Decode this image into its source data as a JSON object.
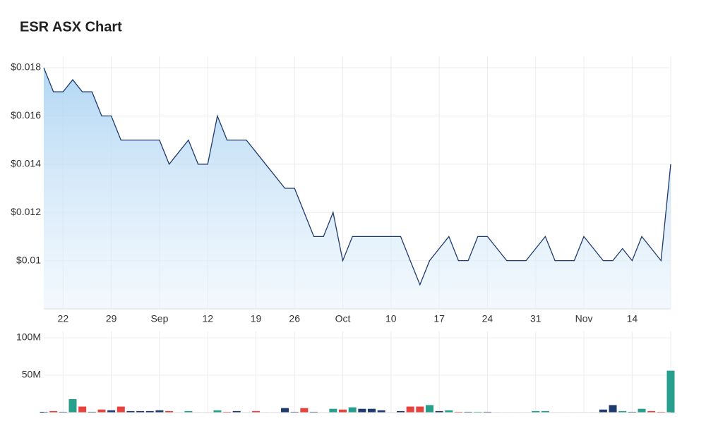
{
  "chart_data": [
    {
      "type": "area",
      "title": "ESR ASX Chart",
      "categories": [
        null,
        null,
        "22",
        null,
        null,
        null,
        null,
        "29",
        null,
        null,
        null,
        null,
        "Sep",
        null,
        null,
        null,
        null,
        "12",
        null,
        null,
        null,
        null,
        "19",
        null,
        null,
        null,
        "26",
        null,
        null,
        null,
        null,
        "Oct",
        null,
        null,
        null,
        null,
        "10",
        null,
        null,
        null,
        null,
        "17",
        null,
        null,
        null,
        null,
        "24",
        null,
        null,
        null,
        null,
        "31",
        null,
        null,
        null,
        null,
        "Nov",
        null,
        null,
        null,
        null,
        "14",
        null,
        null,
        null,
        null
      ],
      "series": [
        {
          "color": "#1f3a6e",
          "values": [
            0.018,
            0.017,
            0.017,
            0.0175,
            0.017,
            0.017,
            0.016,
            0.016,
            0.015,
            0.015,
            0.015,
            0.015,
            0.015,
            0.014,
            0.0145,
            0.015,
            0.014,
            0.014,
            0.016,
            0.015,
            0.015,
            0.015,
            0.0145,
            0.014,
            0.0135,
            0.013,
            0.013,
            0.012,
            0.011,
            0.011,
            0.012,
            0.01,
            0.011,
            0.011,
            0.011,
            0.011,
            0.011,
            0.011,
            0.01,
            0.009,
            0.01,
            0.0105,
            0.011,
            0.01,
            0.01,
            0.011,
            0.011,
            0.0105,
            0.01,
            0.01,
            0.01,
            0.0105,
            0.011,
            0.01,
            0.01,
            0.01,
            0.011,
            0.0105,
            0.01,
            0.01,
            0.0105,
            0.01,
            0.011,
            0.0105,
            0.01,
            0.014
          ]
        }
      ],
      "ylim": [
        0.008,
        0.018
      ],
      "yticks": [
        {
          "value": 0.018,
          "label": "$0.018"
        },
        {
          "value": 0.016,
          "label": "$0.016"
        },
        {
          "value": 0.014,
          "label": "$0.014"
        },
        {
          "value": 0.012,
          "label": "$0.012"
        },
        {
          "value": 0.01,
          "label": "$0.01"
        }
      ],
      "grid": true
    },
    {
      "type": "bar",
      "values": [
        1000000,
        2000000,
        1000000,
        18000000,
        8000000,
        1000000,
        4000000,
        3000000,
        8000000,
        2000000,
        2000000,
        2000000,
        3000000,
        2000000,
        500000,
        2000000,
        500000,
        500000,
        3000000,
        1000000,
        2000000,
        500000,
        2000000,
        500000,
        500000,
        6000000,
        1000000,
        6000000,
        1000000,
        500000,
        5000000,
        4000000,
        7000000,
        5000000,
        5000000,
        3000000,
        500000,
        2000000,
        8000000,
        8000000,
        10000000,
        2000000,
        3000000,
        1000000,
        1000000,
        1000000,
        1000000,
        500000,
        500000,
        500000,
        500000,
        2000000,
        2000000,
        500000,
        500000,
        500000,
        500000,
        500000,
        4000000,
        10000000,
        2000000,
        1000000,
        5000000,
        2000000,
        1000000,
        56000000
      ],
      "colors": [
        "#1f3a6e",
        "#e8423f",
        "#1f3a6e",
        "#26a08c",
        "#e8423f",
        "#1f3a6e",
        "#e8423f",
        "#1f3a6e",
        "#e8423f",
        "#1f3a6e",
        "#1f3a6e",
        "#1f3a6e",
        "#1f3a6e",
        "#e8423f",
        "#1f3a6e",
        "#26a08c",
        "#1f3a6e",
        "#1f3a6e",
        "#26a08c",
        "#e8423f",
        "#1f3a6e",
        "#1f3a6e",
        "#e8423f",
        "#1f3a6e",
        "#1f3a6e",
        "#1f3a6e",
        "#1f3a6e",
        "#e8423f",
        "#1f3a6e",
        "#1f3a6e",
        "#26a08c",
        "#e8423f",
        "#26a08c",
        "#1f3a6e",
        "#1f3a6e",
        "#1f3a6e",
        "#1f3a6e",
        "#1f3a6e",
        "#e8423f",
        "#e8423f",
        "#26a08c",
        "#1f3a6e",
        "#26a08c",
        "#e8423f",
        "#1f3a6e",
        "#26a08c",
        "#1f3a6e",
        "#1f3a6e",
        "#e8423f",
        "#1f3a6e",
        "#1f3a6e",
        "#26a08c",
        "#26a08c",
        "#e8423f",
        "#e8423f",
        "#1f3a6e",
        "#e8423f",
        "#1f3a6e",
        "#1f3a6e",
        "#1f3a6e",
        "#26a08c",
        "#1f3a6e",
        "#26a08c",
        "#e8423f",
        "#e8423f",
        "#26a08c"
      ],
      "ylim": [
        0,
        100000000
      ],
      "yticks": [
        {
          "value": 100000000,
          "label": "100M"
        },
        {
          "value": 50000000,
          "label": "50M"
        }
      ],
      "grid": true
    }
  ]
}
